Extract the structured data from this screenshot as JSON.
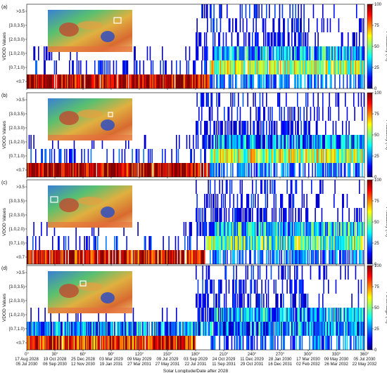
{
  "chart_data": {
    "type": "heatmap",
    "y_categories": [
      "<0.7",
      "[0.7,1.0)",
      "[1.0,2.0)",
      "[2.0,3.0)",
      "[3.0,3.5)",
      ">3.5"
    ],
    "ylabel": "VDOD Values",
    "xlabel": "Solar Longitude/Date after 2028",
    "x_range": [
      0,
      360
    ],
    "x_ticks": [
      {
        "value": 0,
        "label": "0°",
        "date1": "17 Aug 2028",
        "date2": "05 Jul 2030"
      },
      {
        "value": 30,
        "label": "30°",
        "date1": "19 Oct 2028",
        "date2": "06 Sep 2030"
      },
      {
        "value": 60,
        "label": "60°",
        "date1": "25 Dec 2028",
        "date2": "12 Nov 2030"
      },
      {
        "value": 90,
        "label": "90°",
        "date1": "03 Mar 2029",
        "date2": "19 Jan 2031"
      },
      {
        "value": 120,
        "label": "120°",
        "date1": "09 May 2029",
        "date2": "27 Mar 2031"
      },
      {
        "value": 150,
        "label": "150°",
        "date1": "09 Jul 2029",
        "date2": "27 May 2031"
      },
      {
        "value": 180,
        "label": "180°",
        "date1": "03 Sep 2029",
        "date2": "22 Jul 2031"
      },
      {
        "value": 210,
        "label": "210°",
        "date1": "24 Oct 2029",
        "date2": "11 Sep 2031"
      },
      {
        "value": 240,
        "label": "240°",
        "date1": "11 Dec 2029",
        "date2": "29 Oct 2031"
      },
      {
        "value": 270,
        "label": "270°",
        "date1": "28 Jan 2030",
        "date2": "16 Dec 2031"
      },
      {
        "value": 300,
        "label": "300°",
        "date1": "17 Mar 2030",
        "date2": "02 Feb 2032"
      },
      {
        "value": 330,
        "label": "330°",
        "date1": "09 May 2030",
        "date2": "26 Mar 2032"
      },
      {
        "value": 360,
        "label": "360°",
        "date1": "05 Jul 2030",
        "date2": "22 May 2032"
      }
    ],
    "colorbar": {
      "range": [
        0,
        100
      ],
      "ticks": [
        0,
        25,
        50,
        75,
        100
      ],
      "colormap": "jet"
    },
    "panels": [
      {
        "label": "(a)",
        "colorbar_label": "Probability (%)",
        "dominant": [
          {
            "category": "<0.7",
            "x_range": [
              0,
              195
            ],
            "value": 95
          },
          {
            "category": "[0.7,1.0)",
            "x_range": [
              195,
              360
            ],
            "value": 55
          },
          {
            "category": "[1.0,2.0)",
            "x_range": [
              200,
              360
            ],
            "value": 30
          }
        ]
      },
      {
        "label": "(b)",
        "colorbar_label": "Probability (%)",
        "dominant": [
          {
            "category": "<0.7",
            "x_range": [
              0,
              195
            ],
            "value": 95
          },
          {
            "category": "[0.7,1.0)",
            "x_range": [
              195,
              360
            ],
            "value": 55
          },
          {
            "category": "[1.0,2.0)",
            "x_range": [
              200,
              360
            ],
            "value": 25
          }
        ]
      },
      {
        "label": "(c)",
        "colorbar_label": "Probability (%)",
        "dominant": [
          {
            "category": "<0.7",
            "x_range": [
              0,
              190
            ],
            "value": 92
          },
          {
            "category": "[0.7,1.0)",
            "x_range": [
              190,
              360
            ],
            "value": 45
          },
          {
            "category": "[1.0,2.0)",
            "x_range": [
              200,
              360
            ],
            "value": 35
          }
        ]
      },
      {
        "label": "(d)",
        "colorbar_label": "Percentage (%)",
        "dominant": [
          {
            "category": "<0.7",
            "x_range": [
              0,
              180
            ],
            "value": 85
          },
          {
            "category": "[0.7,1.0)",
            "x_range": [
              0,
              360
            ],
            "value": 25
          },
          {
            "category": "[1.0,2.0)",
            "x_range": [
              200,
              360
            ],
            "value": 30
          }
        ]
      }
    ]
  }
}
